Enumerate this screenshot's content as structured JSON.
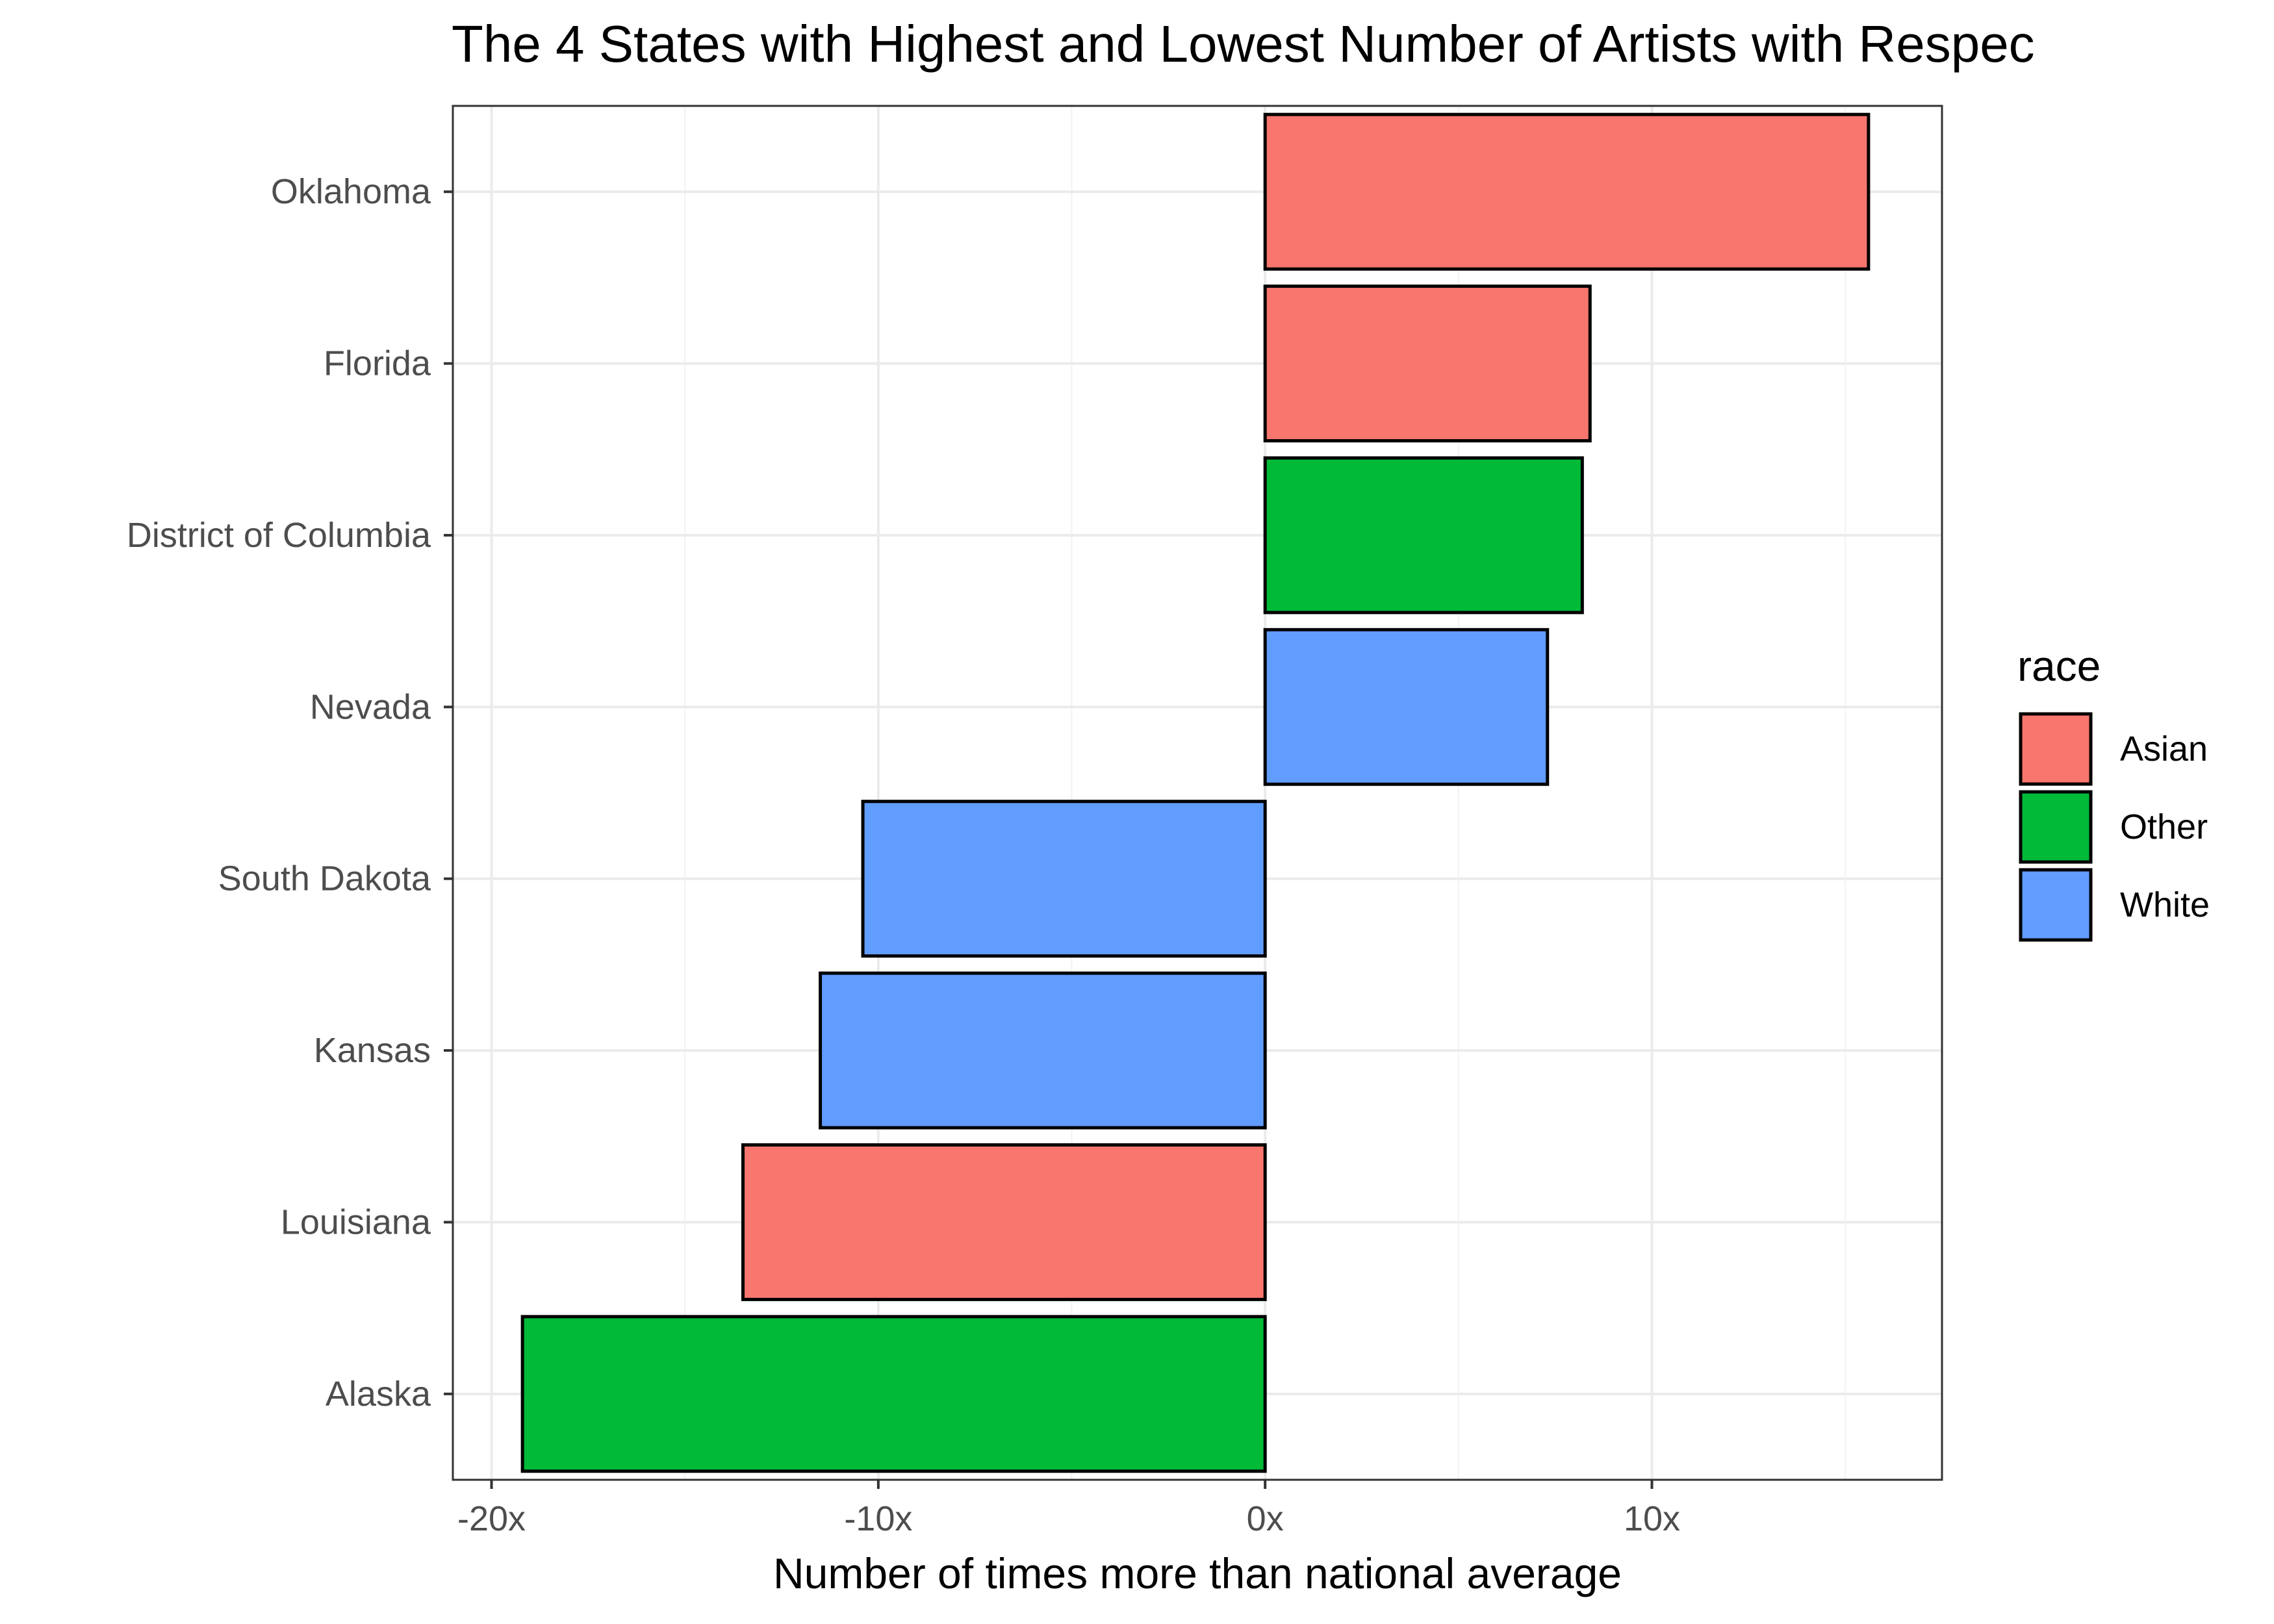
{
  "chart_data": {
    "type": "bar",
    "orientation": "horizontal",
    "title": "The 4 States with Highest and Lowest Number of Artists with Respec",
    "xlabel": "Number of times more than national average",
    "ylabel": "",
    "xlim": [
      -21,
      17.5
    ],
    "x_ticks": [
      -20,
      -10,
      0,
      10
    ],
    "x_tick_labels": [
      "-20x",
      "-10x",
      "0x",
      "10x"
    ],
    "grid": true,
    "categories": [
      "Oklahoma",
      "Florida",
      "District of Columbia",
      "Nevada",
      "South Dakota",
      "Kansas",
      "Louisiana",
      "Alaska"
    ],
    "values": [
      15.6,
      8.4,
      8.2,
      7.3,
      -10.4,
      -11.5,
      -13.5,
      -19.2
    ],
    "bar_race": [
      "Asian",
      "Asian",
      "Other",
      "White",
      "White",
      "White",
      "Asian",
      "Other"
    ],
    "legend": {
      "title": "race",
      "position": "right",
      "entries": [
        {
          "name": "Asian",
          "color": "#F8766D"
        },
        {
          "name": "Other",
          "color": "#00BA38"
        },
        {
          "name": "White",
          "color": "#619CFF"
        }
      ]
    }
  }
}
